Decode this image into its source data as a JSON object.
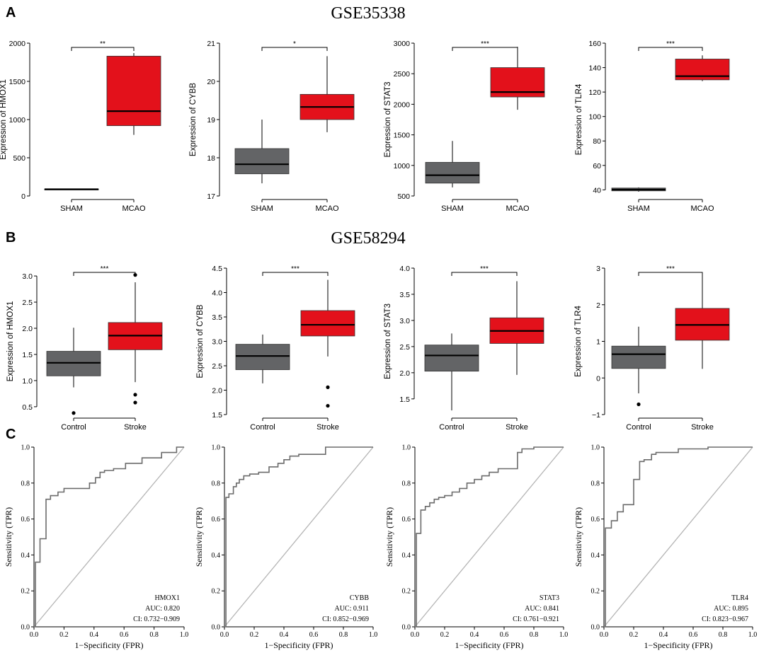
{
  "panels": {
    "A": {
      "label": "A",
      "title": "GSE35338"
    },
    "B": {
      "label": "B",
      "title": "GSE58294"
    },
    "C": {
      "label": "C"
    }
  },
  "colors": {
    "control_fill": "#636466",
    "case_fill": "#e3111b",
    "axis": "#000000",
    "diagonal": "#b4b4b4",
    "roc_line": "#6b6b6b"
  },
  "chart_data": [
    {
      "id": "A1",
      "type": "box",
      "panel": "A",
      "ylabel": "Expression of HMOX1",
      "categories": [
        "SHAM",
        "MCAO"
      ],
      "ylim": [
        0,
        2000
      ],
      "yticks": [
        0,
        500,
        1000,
        1500,
        2000
      ],
      "tick_labels": [
        "0",
        "500",
        "1000",
        "1500",
        "2000"
      ],
      "significance": "**",
      "boxes": [
        {
          "q1": 84,
          "median": 88,
          "q3": 92,
          "whislo": 82,
          "whishi": 94,
          "outliers": []
        },
        {
          "q1": 920,
          "median": 1110,
          "q3": 1830,
          "whislo": 800,
          "whishi": 1870,
          "outliers": []
        }
      ]
    },
    {
      "id": "A2",
      "type": "box",
      "panel": "A",
      "ylabel": "Expression of CYBB",
      "categories": [
        "SHAM",
        "MCAO"
      ],
      "ylim": [
        17,
        21
      ],
      "yticks": [
        17,
        18,
        19,
        20,
        21
      ],
      "tick_labels": [
        "17",
        "18",
        "19",
        "20",
        "21"
      ],
      "significance": "*",
      "boxes": [
        {
          "q1": 17.58,
          "median": 17.83,
          "q3": 18.24,
          "whislo": 17.33,
          "whishi": 19.0,
          "outliers": []
        },
        {
          "q1": 19.0,
          "median": 19.33,
          "q3": 19.66,
          "whislo": 18.67,
          "whishi": 20.66,
          "outliers": []
        }
      ]
    },
    {
      "id": "A3",
      "type": "box",
      "panel": "A",
      "ylabel": "Expression of STAT3",
      "categories": [
        "SHAM",
        "MCAO"
      ],
      "ylim": [
        500,
        3000
      ],
      "yticks": [
        500,
        1000,
        1500,
        2000,
        2500,
        3000
      ],
      "tick_labels": [
        "500",
        "1000",
        "1500",
        "2000",
        "2500",
        "3000"
      ],
      "significance": "***",
      "boxes": [
        {
          "q1": 710,
          "median": 840,
          "q3": 1050,
          "whislo": 640,
          "whishi": 1400,
          "outliers": []
        },
        {
          "q1": 2120,
          "median": 2200,
          "q3": 2600,
          "whislo": 1910,
          "whishi": 2940,
          "outliers": []
        }
      ]
    },
    {
      "id": "A4",
      "type": "box",
      "panel": "A",
      "ylabel": "Expression of TLR4",
      "categories": [
        "SHAM",
        "MCAO"
      ],
      "ylim": [
        35,
        160
      ],
      "yticks": [
        40,
        60,
        80,
        100,
        120,
        140,
        160
      ],
      "tick_labels": [
        "40",
        "60",
        "80",
        "100",
        "120",
        "140",
        "160"
      ],
      "significance": "***",
      "boxes": [
        {
          "q1": 39.2,
          "median": 40.2,
          "q3": 41.5,
          "whislo": 38.5,
          "whishi": 42.0,
          "outliers": []
        },
        {
          "q1": 130,
          "median": 133,
          "q3": 147,
          "whislo": 129,
          "whishi": 150,
          "outliers": []
        }
      ]
    },
    {
      "id": "B1",
      "type": "box",
      "panel": "B",
      "ylabel": "Expression of HMOX1",
      "categories": [
        "Control",
        "Stroke"
      ],
      "ylim": [
        0.35,
        3.15
      ],
      "yticks": [
        0.5,
        1.0,
        1.5,
        2.0,
        2.5,
        3.0
      ],
      "tick_labels": [
        "0.5",
        "1.0",
        "1.5",
        "2.0",
        "2.5",
        "3.0"
      ],
      "significance": "***",
      "boxes": [
        {
          "q1": 1.09,
          "median": 1.34,
          "q3": 1.56,
          "whislo": 0.87,
          "whishi": 2.01,
          "outliers": [
            0.38
          ]
        },
        {
          "q1": 1.59,
          "median": 1.86,
          "q3": 2.11,
          "whislo": 0.97,
          "whishi": 2.88,
          "outliers": [
            3.02,
            0.73,
            0.58
          ]
        }
      ]
    },
    {
      "id": "B2",
      "type": "box",
      "panel": "B",
      "ylabel": "Expression of CYBB",
      "categories": [
        "Control",
        "Stroke"
      ],
      "ylim": [
        1.5,
        4.5
      ],
      "yticks": [
        1.5,
        2.0,
        2.5,
        3.0,
        3.5,
        4.0,
        4.5
      ],
      "tick_labels": [
        "1.5",
        "2.0",
        "2.5",
        "3.0",
        "3.5",
        "4.0",
        "4.5"
      ],
      "significance": "***",
      "boxes": [
        {
          "q1": 2.42,
          "median": 2.7,
          "q3": 2.94,
          "whislo": 2.14,
          "whishi": 3.14,
          "outliers": []
        },
        {
          "q1": 3.11,
          "median": 3.34,
          "q3": 3.63,
          "whislo": 2.69,
          "whishi": 4.26,
          "outliers": [
            2.06,
            1.68
          ]
        }
      ]
    },
    {
      "id": "B3",
      "type": "box",
      "panel": "B",
      "ylabel": "Expression of STAT3",
      "categories": [
        "Control",
        "Stroke"
      ],
      "ylim": [
        1.2,
        4.0
      ],
      "yticks": [
        1.5,
        2.0,
        2.5,
        3.0,
        3.5,
        4.0
      ],
      "tick_labels": [
        "1.5",
        "2.0",
        "2.5",
        "3.0",
        "3.5",
        "4.0"
      ],
      "significance": "***",
      "boxes": [
        {
          "q1": 2.03,
          "median": 2.33,
          "q3": 2.53,
          "whislo": 1.28,
          "whishi": 2.75,
          "outliers": []
        },
        {
          "q1": 2.56,
          "median": 2.8,
          "q3": 3.05,
          "whislo": 1.96,
          "whishi": 3.75,
          "outliers": []
        }
      ]
    },
    {
      "id": "B4",
      "type": "box",
      "panel": "B",
      "ylabel": "Expression of TLR4",
      "categories": [
        "Control",
        "Stroke"
      ],
      "ylim": [
        -1,
        3
      ],
      "yticks": [
        -1,
        0,
        1,
        2,
        3
      ],
      "tick_labels": [
        "−1",
        "0",
        "1",
        "2",
        "3"
      ],
      "significance": "***",
      "boxes": [
        {
          "q1": 0.26,
          "median": 0.65,
          "q3": 0.87,
          "whislo": -0.42,
          "whishi": 1.4,
          "outliers": [
            -0.72
          ]
        },
        {
          "q1": 1.03,
          "median": 1.45,
          "q3": 1.9,
          "whislo": 0.25,
          "whishi": 2.84,
          "outliers": []
        }
      ]
    },
    {
      "id": "C1",
      "type": "line",
      "panel": "C",
      "gene": "HMOX1",
      "auc": "AUC: 0.820",
      "ci": "CI: 0.732−0.909",
      "xlabel": "1−Specificity (FPR)",
      "ylabel": "Sensitivity (TPR)",
      "xlim": [
        0,
        1
      ],
      "ylim": [
        0,
        1
      ],
      "ticks": [
        0,
        0.2,
        0.4,
        0.6,
        0.8,
        1
      ],
      "tick_labels": [
        "0.0",
        "0.2",
        "0.4",
        "0.6",
        "0.8",
        "1.0"
      ],
      "x": [
        0,
        0.01,
        0.01,
        0.04,
        0.04,
        0.08,
        0.08,
        0.11,
        0.11,
        0.16,
        0.16,
        0.2,
        0.2,
        0.37,
        0.37,
        0.41,
        0.41,
        0.44,
        0.44,
        0.47,
        0.47,
        0.53,
        0.53,
        0.61,
        0.61,
        0.72,
        0.72,
        0.85,
        0.85,
        0.95,
        0.95,
        1.0
      ],
      "y": [
        0,
        0,
        0.36,
        0.36,
        0.49,
        0.49,
        0.71,
        0.71,
        0.73,
        0.73,
        0.75,
        0.75,
        0.77,
        0.77,
        0.8,
        0.8,
        0.83,
        0.83,
        0.86,
        0.86,
        0.87,
        0.87,
        0.88,
        0.88,
        0.91,
        0.91,
        0.94,
        0.94,
        0.97,
        0.97,
        1.0,
        1.0
      ]
    },
    {
      "id": "C2",
      "type": "line",
      "panel": "C",
      "gene": "CYBB",
      "auc": "AUC: 0.911",
      "ci": "CI: 0.852−0.969",
      "xlabel": "1−Specificity (FPR)",
      "ylabel": "Sensitivity (TPR)",
      "xlim": [
        0,
        1
      ],
      "ylim": [
        0,
        1
      ],
      "ticks": [
        0,
        0.2,
        0.4,
        0.6,
        0.8,
        1
      ],
      "tick_labels": [
        "0.0",
        "0.2",
        "0.4",
        "0.6",
        "0.8",
        "1.0"
      ],
      "x": [
        0,
        0.01,
        0.01,
        0.03,
        0.03,
        0.06,
        0.06,
        0.08,
        0.08,
        0.1,
        0.1,
        0.13,
        0.13,
        0.17,
        0.17,
        0.23,
        0.23,
        0.3,
        0.3,
        0.36,
        0.36,
        0.4,
        0.4,
        0.44,
        0.44,
        0.5,
        0.5,
        0.68,
        0.68,
        1.0
      ],
      "y": [
        0,
        0,
        0.72,
        0.72,
        0.74,
        0.74,
        0.78,
        0.78,
        0.8,
        0.8,
        0.82,
        0.82,
        0.84,
        0.84,
        0.85,
        0.85,
        0.86,
        0.86,
        0.89,
        0.89,
        0.91,
        0.91,
        0.93,
        0.93,
        0.95,
        0.95,
        0.96,
        0.96,
        1.0,
        1.0
      ]
    },
    {
      "id": "C3",
      "type": "line",
      "panel": "C",
      "gene": "STAT3",
      "auc": "AUC: 0.841",
      "ci": "CI: 0.761−0.921",
      "xlabel": "1−Specificity (FPR)",
      "ylabel": "Sensitivity (TPR)",
      "xlim": [
        0,
        1
      ],
      "ylim": [
        0,
        1
      ],
      "ticks": [
        0,
        0.2,
        0.4,
        0.6,
        0.8,
        1
      ],
      "tick_labels": [
        "0.0",
        "0.2",
        "0.4",
        "0.6",
        "0.8",
        "1.0"
      ],
      "x": [
        0,
        0.01,
        0.01,
        0.04,
        0.04,
        0.07,
        0.07,
        0.1,
        0.1,
        0.13,
        0.13,
        0.16,
        0.16,
        0.2,
        0.2,
        0.25,
        0.25,
        0.3,
        0.3,
        0.35,
        0.35,
        0.4,
        0.4,
        0.45,
        0.45,
        0.5,
        0.5,
        0.56,
        0.56,
        0.69,
        0.69,
        0.72,
        0.72,
        0.8,
        0.8,
        1.0
      ],
      "y": [
        0,
        0,
        0.52,
        0.52,
        0.65,
        0.65,
        0.67,
        0.67,
        0.69,
        0.69,
        0.71,
        0.71,
        0.72,
        0.72,
        0.73,
        0.73,
        0.75,
        0.75,
        0.77,
        0.77,
        0.8,
        0.8,
        0.82,
        0.82,
        0.84,
        0.84,
        0.86,
        0.86,
        0.88,
        0.88,
        0.97,
        0.97,
        0.99,
        0.99,
        1.0,
        1.0
      ]
    },
    {
      "id": "C4",
      "type": "line",
      "panel": "C",
      "gene": "TLR4",
      "auc": "AUC: 0.895",
      "ci": "CI: 0.823−0.967",
      "xlabel": "1−Specificity (FPR)",
      "ylabel": "Sensitivity (TPR)",
      "xlim": [
        0,
        1
      ],
      "ylim": [
        0,
        1
      ],
      "ticks": [
        0,
        0.2,
        0.4,
        0.6,
        0.8,
        1
      ],
      "tick_labels": [
        "0.0",
        "0.2",
        "0.4",
        "0.6",
        "0.8",
        "1.0"
      ],
      "x": [
        0,
        0.01,
        0.01,
        0.05,
        0.05,
        0.09,
        0.09,
        0.13,
        0.13,
        0.2,
        0.2,
        0.24,
        0.24,
        0.27,
        0.27,
        0.32,
        0.32,
        0.35,
        0.35,
        0.5,
        0.5,
        0.7,
        0.7,
        1.0
      ],
      "y": [
        0,
        0,
        0.55,
        0.55,
        0.59,
        0.59,
        0.64,
        0.64,
        0.68,
        0.68,
        0.82,
        0.82,
        0.92,
        0.92,
        0.93,
        0.93,
        0.96,
        0.96,
        0.97,
        0.97,
        0.99,
        0.99,
        1.0,
        1.0
      ]
    }
  ]
}
